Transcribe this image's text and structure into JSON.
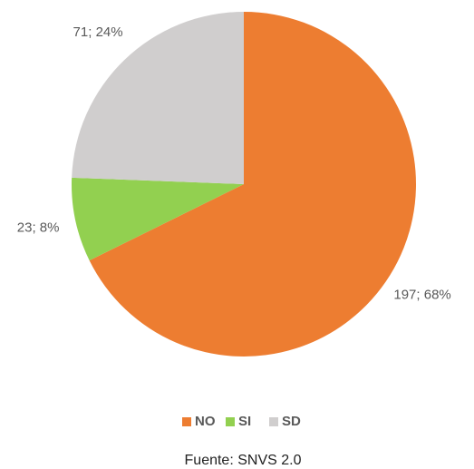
{
  "chart_data": {
    "type": "pie",
    "categories": [
      "NO",
      "SI",
      "SD"
    ],
    "values": [
      197,
      23,
      71
    ],
    "value_labels": [
      "197; 68%",
      "23; 8%",
      "71; 24%"
    ],
    "colors": [
      "#ED7D31",
      "#92D050",
      "#D0CECE"
    ],
    "legend": "bottom",
    "caption": "Fuente: SNVS 2.0"
  }
}
